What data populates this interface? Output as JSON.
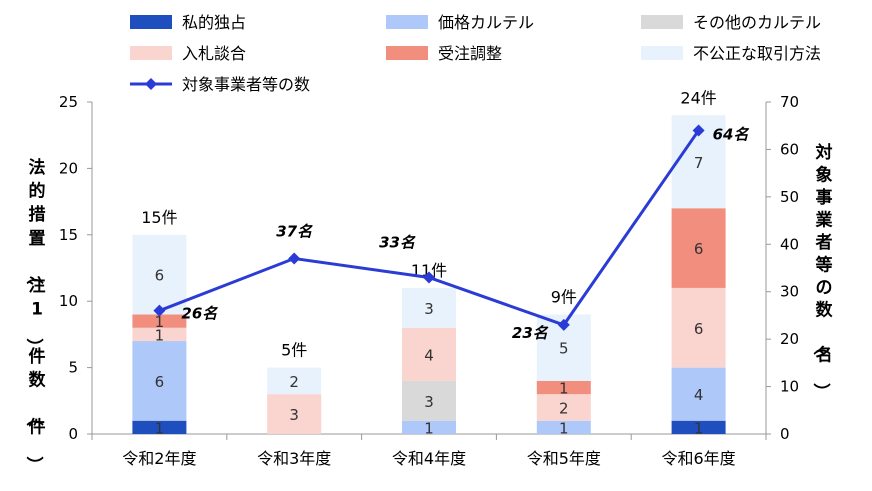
{
  "chart_data": {
    "type": "bar",
    "categories": [
      "令和2年度",
      "令和3年度",
      "令和4年度",
      "令和5年度",
      "令和6年度"
    ],
    "series": [
      {
        "name": "私的独占",
        "color": "#1f4fbf",
        "values": [
          1,
          0,
          0,
          0,
          1
        ]
      },
      {
        "name": "価格カルテル",
        "color": "#aec8fa",
        "values": [
          6,
          0,
          1,
          1,
          4
        ]
      },
      {
        "name": "その他のカルテル",
        "color": "#d9d9d9",
        "values": [
          0,
          0,
          3,
          0,
          0
        ]
      },
      {
        "name": "入札談合",
        "color": "#fad4ce",
        "values": [
          1,
          3,
          4,
          2,
          6
        ]
      },
      {
        "name": "受注調整",
        "color": "#f28e7e",
        "values": [
          1,
          0,
          0,
          1,
          6
        ]
      },
      {
        "name": "不公正な取引方法",
        "color": "#e8f2fc",
        "values": [
          6,
          2,
          3,
          5,
          7
        ]
      }
    ],
    "totals": [
      "15件",
      "5件",
      "11件",
      "9件",
      "24件"
    ],
    "line_series": {
      "name": "対象事業者等の数",
      "color": "#2a3bd6",
      "values": [
        26,
        37,
        33,
        23,
        64
      ],
      "labels": [
        "26名",
        "37名",
        "33名",
        "23名",
        "64名"
      ]
    },
    "ylabel_left": "法的措置（注1）件数（件）",
    "ylabel_right": "対象事業者等の数（名）",
    "ylim_left": [
      0,
      25
    ],
    "yticks_left": [
      "0",
      "5",
      "10",
      "15",
      "20",
      "25"
    ],
    "ylim_right": [
      0,
      70
    ],
    "yticks_right": [
      "0",
      "10",
      "20",
      "30",
      "40",
      "50",
      "60",
      "70"
    ],
    "legend_position": "top"
  }
}
